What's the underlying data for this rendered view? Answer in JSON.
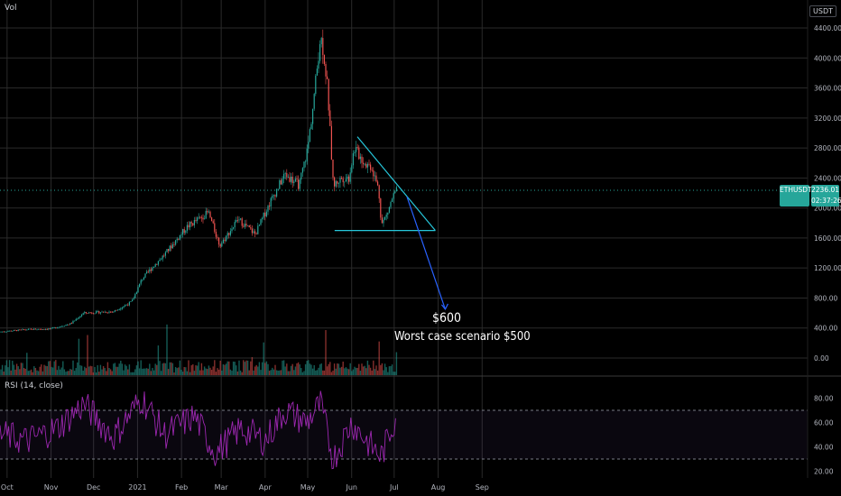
{
  "panel_labels": {
    "volume": "Vol",
    "rsi": "RSI (14, close)"
  },
  "unit_badge": "USDT",
  "price_badge": {
    "symbol": "ETHUSDT",
    "countdown": "02:37:26",
    "price": "2236.01"
  },
  "annotations": {
    "target": "$600",
    "note": "Worst case scenario $500"
  },
  "colors": {
    "up": "#26a69a",
    "down": "#ef5350",
    "rsi": "#9c27b0",
    "trendline": "#26c6da",
    "projection": "#2962ff",
    "grid": "#2a2a2a"
  },
  "chart_data": [
    {
      "type": "candlestick",
      "symbol": "ETHUSDT",
      "y_ticks": [
        0,
        400,
        800,
        1200,
        1600,
        2000,
        2400,
        2800,
        3200,
        3600,
        4000,
        4400
      ],
      "y_tick_labels": [
        "0.00",
        "400.00",
        "800.00",
        "1200.00",
        "1600.00",
        "2000.00",
        "2400.00",
        "2800.00",
        "3200.00",
        "3600.00",
        "4000.00",
        "4400.00"
      ],
      "x_tick_labels": [
        "Oct",
        "Nov",
        "Dec",
        "2021",
        "Feb",
        "Mar",
        "Apr",
        "May",
        "Jun",
        "Jul",
        "Aug",
        "Sep"
      ],
      "x_ticks": [
        "2020-10-01",
        "2020-11-01",
        "2020-12-01",
        "2021-01-01",
        "2021-02-01",
        "2021-03-01",
        "2021-04-01",
        "2021-05-01",
        "2021-06-01",
        "2021-07-01",
        "2021-08-01",
        "2021-09-01"
      ],
      "series": [
        {
          "x": [
            "2020-09-26",
            "2020-10-15",
            "2020-11-01",
            "2020-11-15",
            "2020-11-24",
            "2020-12-15",
            "2020-12-28",
            "2021-01-04",
            "2021-01-11",
            "2021-01-20",
            "2021-02-05",
            "2021-02-20",
            "2021-02-28",
            "2021-03-13",
            "2021-03-25",
            "2021-04-05",
            "2021-04-15",
            "2021-04-25",
            "2021-05-01",
            "2021-05-05",
            "2021-05-10",
            "2021-05-12",
            "2021-05-15",
            "2021-05-19",
            "2021-05-25",
            "2021-05-30",
            "2021-06-03",
            "2021-06-10",
            "2021-06-15",
            "2021-06-20",
            "2021-06-22",
            "2021-06-26",
            "2021-06-30",
            "2021-07-03"
          ],
          "values": [
            350,
            380,
            390,
            460,
            600,
            620,
            750,
            1050,
            1200,
            1380,
            1750,
            1940,
            1500,
            1850,
            1650,
            2100,
            2450,
            2300,
            2800,
            3400,
            4300,
            4100,
            3600,
            2300,
            2400,
            2400,
            2800,
            2600,
            2550,
            2250,
            1780,
            1920,
            2150,
            2236
          ]
        }
      ],
      "trendlines": {
        "support": {
          "x": [
            "2021-05-20",
            "2021-07-30"
          ],
          "values": [
            1700,
            1700
          ]
        },
        "resistance": {
          "x": [
            "2021-06-05",
            "2021-07-30"
          ],
          "values": [
            2950,
            1700
          ]
        },
        "projection": {
          "x": [
            "2021-07-10",
            "2021-08-06"
          ],
          "values": [
            2150,
            650
          ]
        }
      }
    },
    {
      "type": "line",
      "name": "RSI (14, close)",
      "y_ticks": [
        20,
        40,
        60,
        80
      ],
      "y_tick_labels": [
        "20.00",
        "40.00",
        "60.00",
        "80.00"
      ],
      "bands": [
        30,
        70
      ],
      "series": [
        {
          "x": [
            "2020-09-26",
            "2020-10-15",
            "2020-11-05",
            "2020-11-24",
            "2020-12-15",
            "2021-01-04",
            "2021-01-20",
            "2021-02-10",
            "2021-02-25",
            "2021-03-15",
            "2021-04-01",
            "2021-04-15",
            "2021-04-30",
            "2021-05-10",
            "2021-05-19",
            "2021-06-01",
            "2021-06-15",
            "2021-06-22",
            "2021-07-03"
          ],
          "values": [
            50,
            45,
            55,
            75,
            48,
            80,
            50,
            65,
            35,
            55,
            45,
            70,
            60,
            75,
            30,
            60,
            40,
            32,
            68
          ]
        }
      ]
    }
  ]
}
